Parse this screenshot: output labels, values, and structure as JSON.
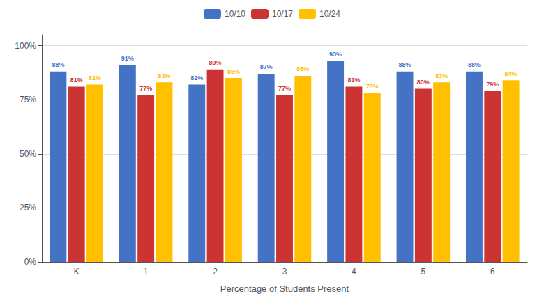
{
  "chart_data": {
    "type": "bar",
    "xlabel": "Percentage of Students Present",
    "categories": [
      "K",
      "1",
      "2",
      "3",
      "4",
      "5",
      "6"
    ],
    "series": [
      {
        "name": "10/10",
        "color": "#4472C4",
        "values": [
          88,
          91,
          82,
          87,
          93,
          88,
          88
        ],
        "value_labels": [
          "88%",
          "91%",
          "82%",
          "87%",
          "93%",
          "88%",
          "88%"
        ]
      },
      {
        "name": "10/17",
        "color": "#CC3333",
        "values": [
          81,
          77,
          89,
          77,
          81,
          80,
          79
        ],
        "value_labels": [
          "81%",
          "77%",
          "89%",
          "77%",
          "81%",
          "80%",
          "79%"
        ]
      },
      {
        "name": "10/24",
        "color": "#FFC000",
        "values": [
          82,
          83,
          85,
          86,
          78,
          83,
          84
        ],
        "value_labels": [
          "82%",
          "83%",
          "85%",
          "86%",
          "78%",
          "83%",
          "84%"
        ]
      }
    ],
    "ylim": [
      0,
      105
    ],
    "yticks": [
      {
        "value": 0,
        "label": "0%"
      },
      {
        "value": 25,
        "label": "25%"
      },
      {
        "value": 50,
        "label": "50%"
      },
      {
        "value": 75,
        "label": "75%"
      },
      {
        "value": 100,
        "label": "100%"
      }
    ],
    "grid": true,
    "legend": "top",
    "data_labels": true
  }
}
